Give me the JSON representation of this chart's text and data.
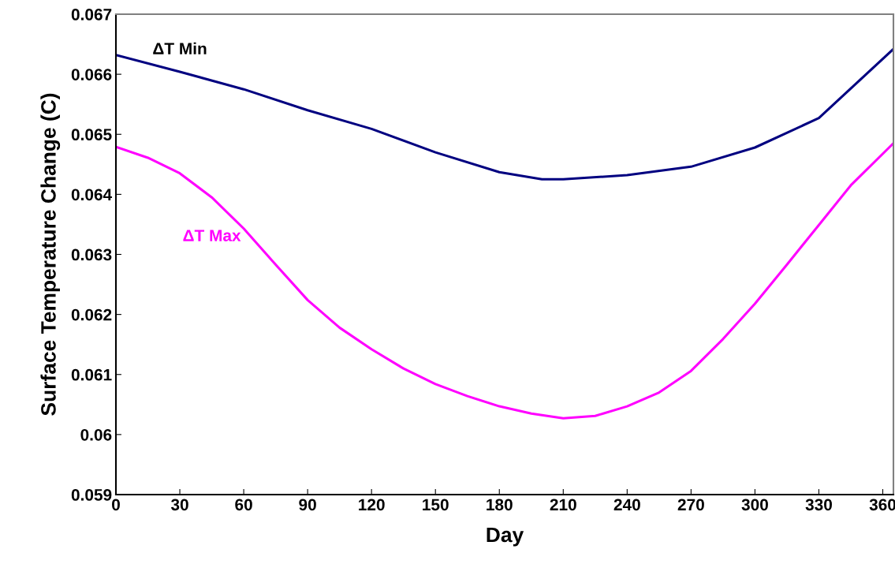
{
  "chart_data": {
    "type": "line",
    "xlabel": "Day",
    "ylabel": "Surface Temperature Change (C)",
    "xlim": [
      0,
      365
    ],
    "xticks": [
      0,
      30,
      60,
      90,
      120,
      150,
      180,
      210,
      240,
      270,
      300,
      330,
      360
    ],
    "ylim": [
      0.059,
      0.067
    ],
    "yticks": [
      0.059,
      0.06,
      0.061,
      0.062,
      0.063,
      0.064,
      0.065,
      0.066,
      0.067
    ],
    "grid": false,
    "legend": false,
    "marker": "none",
    "line_style": "solid",
    "series": [
      {
        "name": "ΔT Min",
        "color": "#000080",
        "x": [
          0,
          30,
          60,
          90,
          120,
          150,
          180,
          200,
          210,
          240,
          270,
          300,
          330,
          365
        ],
        "values": [
          0.06632,
          0.06604,
          0.06575,
          0.0654,
          0.06509,
          0.0647,
          0.06437,
          0.06425,
          0.06425,
          0.06432,
          0.06446,
          0.06478,
          0.06527,
          0.06642
        ]
      },
      {
        "name": "ΔT Max",
        "color": "#ff00ff",
        "x": [
          0,
          15,
          30,
          45,
          60,
          75,
          90,
          105,
          120,
          135,
          150,
          165,
          180,
          195,
          210,
          225,
          240,
          255,
          270,
          285,
          300,
          315,
          330,
          345,
          365
        ],
        "values": [
          0.06479,
          0.06461,
          0.06435,
          0.06395,
          0.06343,
          0.06283,
          0.06224,
          0.06178,
          0.06142,
          0.0611,
          0.06084,
          0.06064,
          0.06047,
          0.06035,
          0.06027,
          0.06031,
          0.06047,
          0.0607,
          0.06106,
          0.06159,
          0.06218,
          0.06283,
          0.06349,
          0.06415,
          0.06485
        ]
      }
    ]
  }
}
